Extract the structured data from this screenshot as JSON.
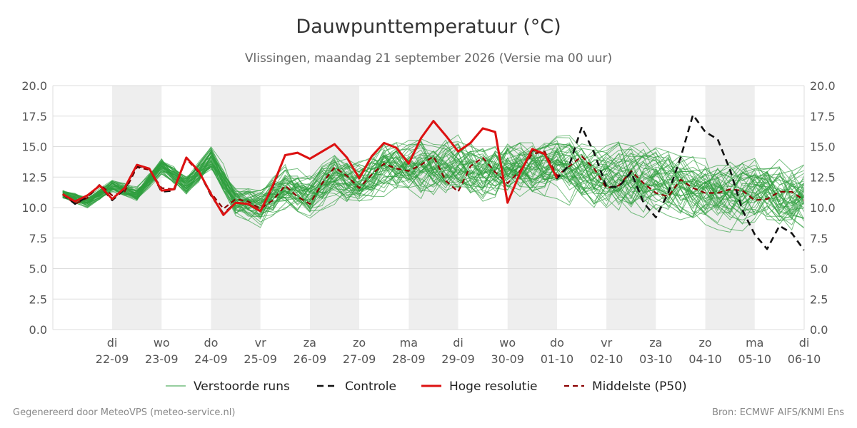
{
  "title": "Dauwpunttemperatuur (°C)",
  "subtitle": "Vlissingen, maandag 21 september 2026 (Versie ma 00 uur)",
  "footer": {
    "left": "Gegenereerd door MeteoVPS (meteo-service.nl)",
    "right": "Bron: ECMWF AIFS/KNMI Ens"
  },
  "colors": {
    "ensemble": "#2e9e3e",
    "control": "#111111",
    "hires": "#dd1111",
    "median": "#8b0000",
    "weekend_band": "#eeeeee",
    "grid": "#dddddd"
  },
  "chart_data": {
    "type": "line",
    "x_unit": "days after 21 september 2026 00 uur",
    "xlim": [
      -0.2,
      15.0
    ],
    "ylim": [
      0,
      20
    ],
    "yticks": [
      "0.0",
      "2.5",
      "5.0",
      "7.5",
      "10.0",
      "12.5",
      "15.0",
      "17.5",
      "20.0"
    ],
    "ytick_values": [
      0,
      2.5,
      5,
      7.5,
      10,
      12.5,
      15,
      17.5,
      20
    ],
    "xticks": [
      {
        "day": "di",
        "date": "22-09"
      },
      {
        "day": "wo",
        "date": "23-09"
      },
      {
        "day": "do",
        "date": "24-09"
      },
      {
        "day": "vr",
        "date": "25-09"
      },
      {
        "day": "za",
        "date": "26-09"
      },
      {
        "day": "zo",
        "date": "27-09"
      },
      {
        "day": "ma",
        "date": "28-09"
      },
      {
        "day": "di",
        "date": "29-09"
      },
      {
        "day": "wo",
        "date": "30-09"
      },
      {
        "day": "do",
        "date": "01-10"
      },
      {
        "day": "vr",
        "date": "02-10"
      },
      {
        "day": "za",
        "date": "03-10"
      },
      {
        "day": "zo",
        "date": "04-10"
      },
      {
        "day": "ma",
        "date": "05-10"
      },
      {
        "day": "di",
        "date": "06-10"
      }
    ],
    "shaded_days": [
      1,
      3,
      5,
      7,
      9,
      11,
      13
    ],
    "legend": {
      "ensemble": "Verstoorde runs",
      "control": "Controle",
      "hires": "Hoge resolutie",
      "median": "Middelste (P50)"
    },
    "ensemble_members": 50,
    "ensemble_band": {
      "x": [
        0,
        0.5,
        1,
        1.5,
        2,
        2.5,
        3,
        3.5,
        4,
        4.5,
        5,
        5.5,
        6,
        6.5,
        7,
        7.5,
        8,
        8.5,
        9,
        9.5,
        10,
        10.5,
        11,
        11.5,
        12,
        12.5,
        13,
        13.5,
        14,
        14.5,
        15
      ],
      "center": [
        11.1,
        10.4,
        11.8,
        11.1,
        13.4,
        11.9,
        14.0,
        10.6,
        10.1,
        11.6,
        10.8,
        12.6,
        12.0,
        13.3,
        13.2,
        13.0,
        13.5,
        12.8,
        13.4,
        13.1,
        13.3,
        12.6,
        12.4,
        12.3,
        12.0,
        11.8,
        11.6,
        11.4,
        11.2,
        11.0,
        11.0
      ],
      "spread": [
        0.6,
        0.6,
        0.7,
        0.8,
        0.9,
        1.1,
        1.3,
        1.8,
        2.0,
        2.3,
        2.5,
        2.7,
        2.8,
        2.9,
        3.0,
        3.1,
        3.2,
        3.2,
        3.3,
        3.3,
        3.4,
        3.5,
        3.5,
        3.6,
        3.6,
        3.7,
        3.7,
        3.7,
        3.8,
        3.8,
        3.8
      ]
    },
    "series": [
      {
        "name": "Hoge resolutie",
        "x": [
          0,
          0.25,
          0.5,
          0.75,
          1,
          1.25,
          1.5,
          1.75,
          2,
          2.25,
          2.5,
          2.75,
          3,
          3.25,
          3.5,
          3.75,
          4,
          4.25,
          4.5,
          4.75,
          5,
          5.25,
          5.5,
          5.75,
          6,
          6.25,
          6.5,
          6.75,
          7,
          7.25,
          7.5,
          7.75,
          8,
          8.25,
          8.5,
          8.75,
          9,
          9.25,
          9.5,
          9.75,
          10
        ],
        "y": [
          11.1,
          10.5,
          11.0,
          11.8,
          10.7,
          11.6,
          13.5,
          13.2,
          11.4,
          11.5,
          14.1,
          13.0,
          11.1,
          9.4,
          10.4,
          10.3,
          9.7,
          11.8,
          14.3,
          14.5,
          14.0,
          14.6,
          15.2,
          14.1,
          12.4,
          14.2,
          15.3,
          14.9,
          13.6,
          15.7,
          17.1,
          15.9,
          14.6,
          15.3,
          16.5,
          16.2,
          10.4,
          12.8,
          14.8,
          14.4,
          12.4
        ]
      },
      {
        "name": "Controle",
        "x": [
          0,
          0.25,
          0.5,
          0.75,
          1,
          1.25,
          1.5,
          1.75,
          2,
          2.25,
          2.5,
          2.75,
          3,
          3.25,
          3.5,
          3.75,
          4,
          4.25,
          4.5,
          4.75,
          5,
          5.25,
          5.5,
          5.75,
          6,
          6.25,
          6.5,
          6.75,
          7,
          7.25,
          7.5,
          7.75,
          8,
          8.25,
          8.5,
          8.75,
          9,
          9.25,
          9.5,
          9.75,
          10,
          10.25,
          10.5,
          10.75,
          11,
          11.25,
          11.5,
          11.75,
          12,
          12.25,
          12.5,
          12.75,
          13,
          13.25,
          13.5,
          13.75,
          14,
          14.25,
          14.5,
          14.75,
          15
        ],
        "y": [
          11.1,
          10.3,
          10.9,
          11.8,
          10.6,
          11.5,
          13.4,
          13.2,
          11.3,
          11.4,
          14.1,
          13.0,
          11.0,
          9.5,
          10.4,
          10.3,
          9.7,
          11.7,
          14.3,
          14.5,
          14.0,
          14.6,
          15.2,
          14.1,
          12.4,
          14.2,
          15.3,
          14.9,
          13.6,
          15.7,
          17.1,
          15.9,
          14.6,
          15.3,
          16.5,
          16.2,
          10.4,
          12.8,
          14.7,
          14.4,
          12.4,
          13.5,
          16.6,
          14.5,
          11.7,
          11.7,
          12.9,
          10.4,
          9.2,
          11.2,
          14.1,
          17.6,
          16.2,
          15.6,
          13.1,
          9.8,
          7.8,
          6.6,
          8.5,
          7.9,
          6.5
        ]
      },
      {
        "name": "Middelste (P50)",
        "x": [
          0,
          0.25,
          0.5,
          0.75,
          1,
          1.25,
          1.5,
          1.75,
          2,
          2.25,
          2.5,
          2.75,
          3,
          3.25,
          3.5,
          3.75,
          4,
          4.25,
          4.5,
          4.75,
          5,
          5.25,
          5.5,
          5.75,
          6,
          6.25,
          6.5,
          6.75,
          7,
          7.25,
          7.5,
          7.75,
          8,
          8.25,
          8.5,
          8.75,
          9,
          9.25,
          9.5,
          9.75,
          10,
          10.25,
          10.5,
          10.75,
          11,
          11.25,
          11.5,
          11.75,
          12,
          12.25,
          12.5,
          12.75,
          13,
          13.25,
          13.5,
          13.75,
          14,
          14.25,
          14.5,
          14.75,
          15
        ],
        "y": [
          11.1,
          10.3,
          10.8,
          11.9,
          11.0,
          11.3,
          13.3,
          13.1,
          11.6,
          11.5,
          14.0,
          12.9,
          11.2,
          9.9,
          10.7,
          10.5,
          9.9,
          10.6,
          11.8,
          10.9,
          10.3,
          12.0,
          13.3,
          12.6,
          11.6,
          12.7,
          13.6,
          13.2,
          13.0,
          13.5,
          14.2,
          12.2,
          11.3,
          13.4,
          14.1,
          12.9,
          12.0,
          13.0,
          14.4,
          14.6,
          12.6,
          13.4,
          14.2,
          13.2,
          11.6,
          11.8,
          13.0,
          12.0,
          11.2,
          10.9,
          12.3,
          11.6,
          11.2,
          11.2,
          11.5,
          11.4,
          10.6,
          10.7,
          11.3,
          11.3,
          10.6
        ]
      }
    ]
  }
}
